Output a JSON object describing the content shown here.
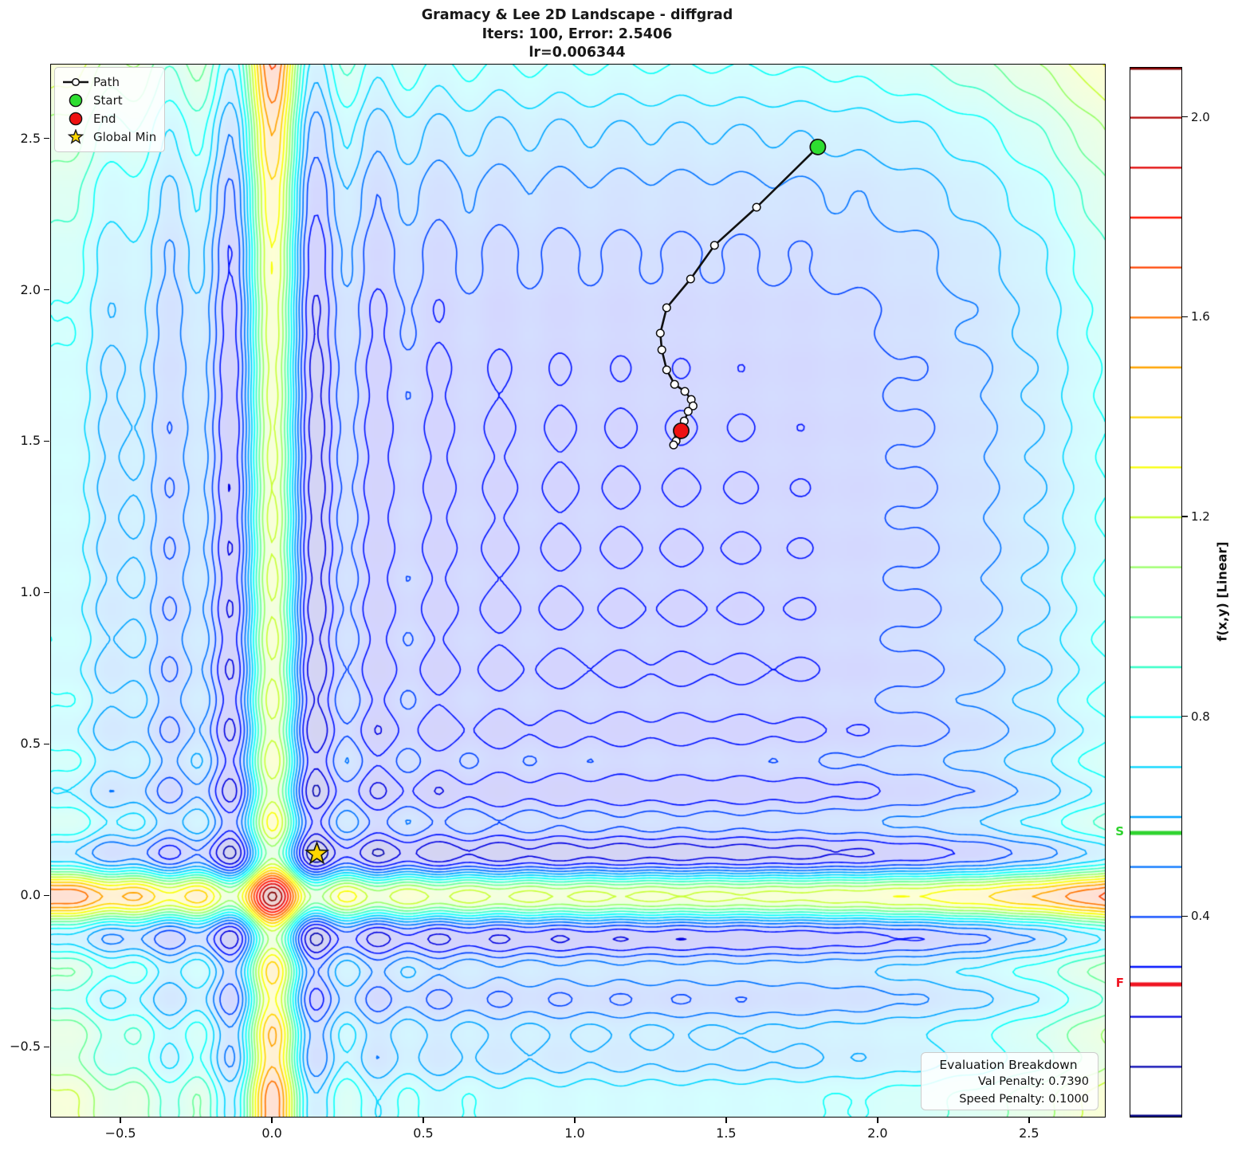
{
  "title": {
    "line1": "Gramacy & Lee 2D Landscape - diffgrad",
    "line2": "Iters: 100, Error: 2.5406",
    "line3": "lr=0.006344"
  },
  "legend": {
    "path_label": "Path",
    "start_label": "Start",
    "end_label": "End",
    "global_min_label": "Global Min"
  },
  "eval_box": {
    "title": "Evaluation Breakdown",
    "line1": "Val Penalty: 0.7390",
    "line2": "Speed Penalty: 0.1000"
  },
  "colorbar": {
    "label": "f(x,y) [Linear]",
    "tick_values": [
      2.0,
      1.6,
      1.2,
      0.8,
      0.4
    ],
    "range": [
      0.0,
      2.1
    ],
    "level_step": 0.1,
    "s_label": "S",
    "f_label": "F",
    "s_value": 0.568,
    "f_value": 0.265
  },
  "colors": {
    "start_marker": "#2edd30",
    "end_marker": "#ee1111",
    "global_min_star": "#ffd700",
    "path_line": "#111111",
    "path_marker_fill": "#ffffff",
    "s_marker_line": "#2fd32f",
    "f_marker_line": "#f01421",
    "colormap": "jet"
  },
  "chart_data": {
    "type": "contour",
    "function": "Gramacy & Lee 2D: f(x,y) = sin(10*pi*x)/(2x) + (x-1)^4 + sin(10*pi*y)/(2y) + (y-1)^4, min-max normalized to [0, 2.1] (linear scale)",
    "x_range": [
      -0.732,
      2.748
    ],
    "y_range": [
      -0.728,
      2.746
    ],
    "x_ticks": [
      -0.5,
      0.0,
      0.5,
      1.0,
      1.5,
      2.0,
      2.5
    ],
    "y_ticks": [
      2.5,
      2.0,
      1.5,
      1.0,
      0.5,
      0.0,
      -0.5
    ],
    "levels": {
      "min": 0.0,
      "max": 2.1,
      "step": 0.1,
      "norm_max": 2.13
    },
    "path": [
      [
        1.8,
        2.474
      ],
      [
        1.598,
        2.275
      ],
      [
        1.459,
        2.149
      ],
      [
        1.38,
        2.038
      ],
      [
        1.301,
        1.943
      ],
      [
        1.28,
        1.859
      ],
      [
        1.285,
        1.804
      ],
      [
        1.301,
        1.738
      ],
      [
        1.327,
        1.69
      ],
      [
        1.361,
        1.667
      ],
      [
        1.382,
        1.64
      ],
      [
        1.388,
        1.619
      ],
      [
        1.372,
        1.601
      ],
      [
        1.359,
        1.569
      ],
      [
        1.34,
        1.521
      ],
      [
        1.332,
        1.503
      ],
      [
        1.324,
        1.49
      ],
      [
        1.349,
        1.537
      ]
    ],
    "start": [
      1.8,
      2.474
    ],
    "end": [
      1.349,
      1.537
    ],
    "global_min": [
      0.146,
      0.14
    ]
  }
}
